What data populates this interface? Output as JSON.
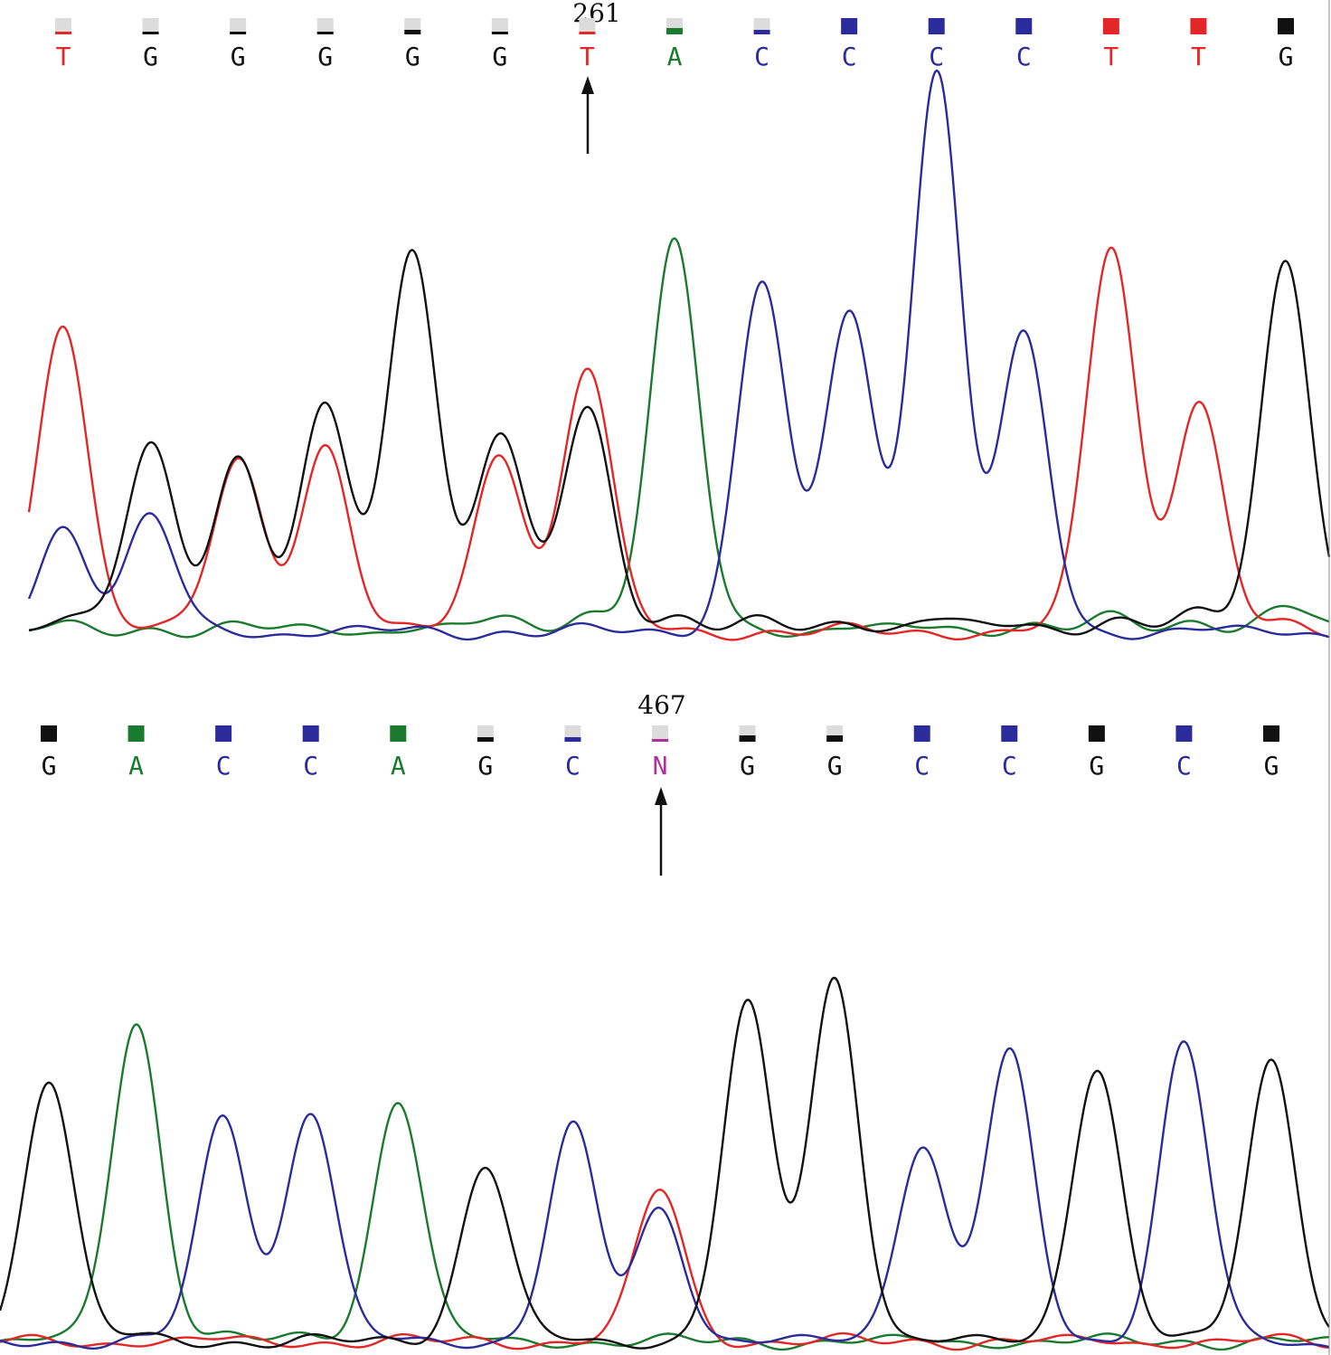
{
  "colors": {
    "A": "#1a7a2e",
    "C": "#2b2b9c",
    "G": "#111111",
    "T": "#e32626",
    "N": "#b0309a",
    "empty_box": "#dcdcdc"
  },
  "chart_data": [
    {
      "type": "line",
      "position_label": "261",
      "marked_index": 6,
      "bases": [
        "T",
        "G",
        "G",
        "G",
        "G",
        "G",
        "T",
        "A",
        "C",
        "C",
        "C",
        "C",
        "T",
        "T",
        "G"
      ],
      "quality": [
        0.15,
        0.15,
        0.15,
        0.15,
        0.3,
        0.15,
        0.15,
        0.4,
        0.3,
        1,
        1,
        1,
        1,
        1,
        1
      ],
      "baseline": 0.02,
      "peaks": {
        "A": [
          0.02,
          0.02,
          0.02,
          0.02,
          0.02,
          0.04,
          0.06,
          1.0,
          0.02,
          0.02,
          0.02,
          0.03,
          0.04,
          0.04,
          0.07
        ],
        "C": [
          0.28,
          0.3,
          0.01,
          0.01,
          0.01,
          0.01,
          0.01,
          0.01,
          0.91,
          0.83,
          1.45,
          0.76,
          0.01,
          0.01,
          0.01
        ],
        "G": [
          0.05,
          0.48,
          0.46,
          0.58,
          1.0,
          0.52,
          0.58,
          0.05,
          0.03,
          0.04,
          0.04,
          0.03,
          0.04,
          0.05,
          0.97
        ],
        "T": [
          0.8,
          0.03,
          0.44,
          0.49,
          0.01,
          0.47,
          0.69,
          0.01,
          0.01,
          0.01,
          0.01,
          0.01,
          1.0,
          0.6,
          0.02
        ]
      }
    },
    {
      "type": "line",
      "position_label": "467",
      "marked_index": 7,
      "bases": [
        "G",
        "A",
        "C",
        "C",
        "A",
        "G",
        "C",
        "N",
        "G",
        "G",
        "C",
        "C",
        "G",
        "C",
        "G"
      ],
      "quality": [
        1,
        1,
        1,
        1,
        1,
        0.3,
        0.3,
        0.15,
        0.4,
        0.4,
        1,
        1,
        1,
        1,
        1
      ],
      "baseline": 0.01,
      "peaks": {
        "A": [
          0.01,
          0.88,
          0.02,
          0.02,
          0.67,
          0.01,
          0.01,
          0.01,
          0.01,
          0.01,
          0.01,
          0.01,
          0.01,
          0.01,
          0.01
        ],
        "C": [
          0.01,
          0.01,
          0.62,
          0.64,
          0.01,
          0.01,
          0.59,
          0.37,
          0.01,
          0.01,
          0.55,
          0.79,
          0.01,
          0.82,
          0.01
        ],
        "G": [
          0.73,
          0.02,
          0.01,
          0.01,
          0.01,
          0.49,
          0.01,
          0.01,
          0.92,
          1.0,
          0.01,
          0.01,
          0.76,
          0.01,
          0.78
        ],
        "T": [
          0.01,
          0.01,
          0.01,
          0.01,
          0.01,
          0.01,
          0.01,
          0.42,
          0.01,
          0.01,
          0.01,
          0.01,
          0.01,
          0.01,
          0.01
        ]
      }
    }
  ]
}
